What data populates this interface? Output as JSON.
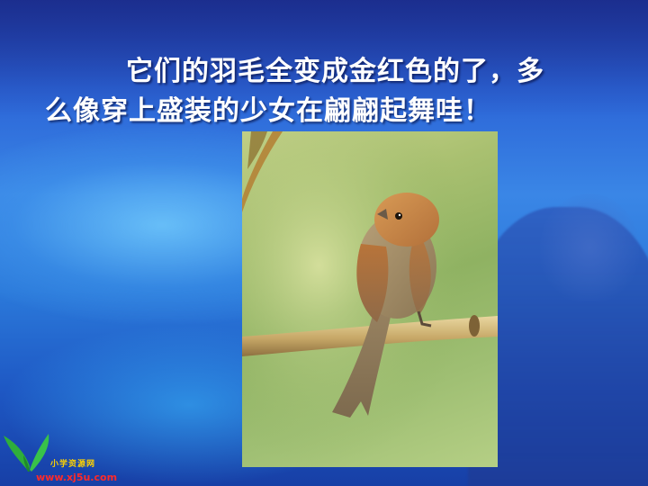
{
  "slide": {
    "text": "它们的羽毛全变成金红色的了，多么像穿上盛装的少女在翩翩起舞哇！"
  },
  "photo": {
    "subject": "bird-on-branch"
  },
  "logo": {
    "name_cn": "小学资源网",
    "url": "www.xj5u.com"
  },
  "colors": {
    "background": "#2b6fd6",
    "text": "#ffffff",
    "logo_url": "#ff2a2a",
    "logo_name": "#ffd200",
    "logo_leaf": "#2fae3b"
  }
}
